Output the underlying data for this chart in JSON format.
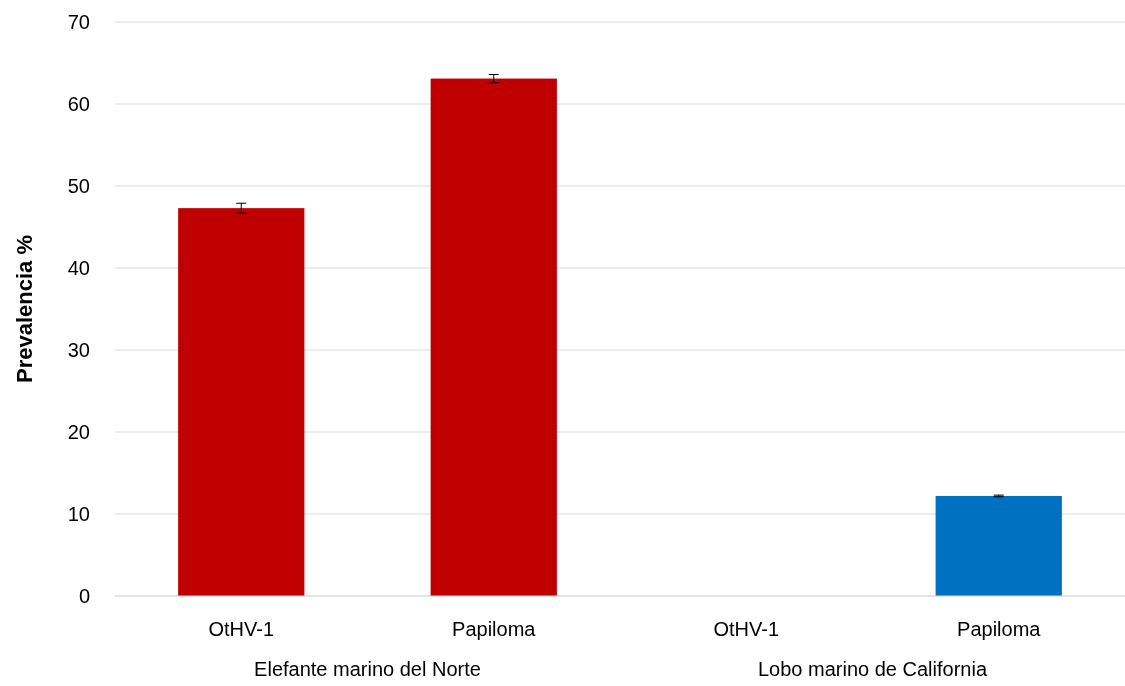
{
  "chart_data": {
    "type": "bar",
    "ylabel": "Prevalencia %",
    "categories": [
      "OtHV-1",
      "Papiloma",
      "OtHV-1",
      "Papiloma"
    ],
    "values": [
      47.3,
      63.1,
      0,
      12.2
    ],
    "errors": [
      0.6,
      0.5,
      null,
      0.1
    ],
    "colors": [
      "#c00000",
      "#c00000",
      "#c00000",
      "#0070c0"
    ],
    "ylim": [
      0,
      70
    ],
    "yticks": [
      0,
      10,
      20,
      30,
      40,
      50,
      60,
      70
    ],
    "grid": "y",
    "annotations": [
      "Elefante marino del Norte",
      "Lobo marino de California"
    ]
  }
}
